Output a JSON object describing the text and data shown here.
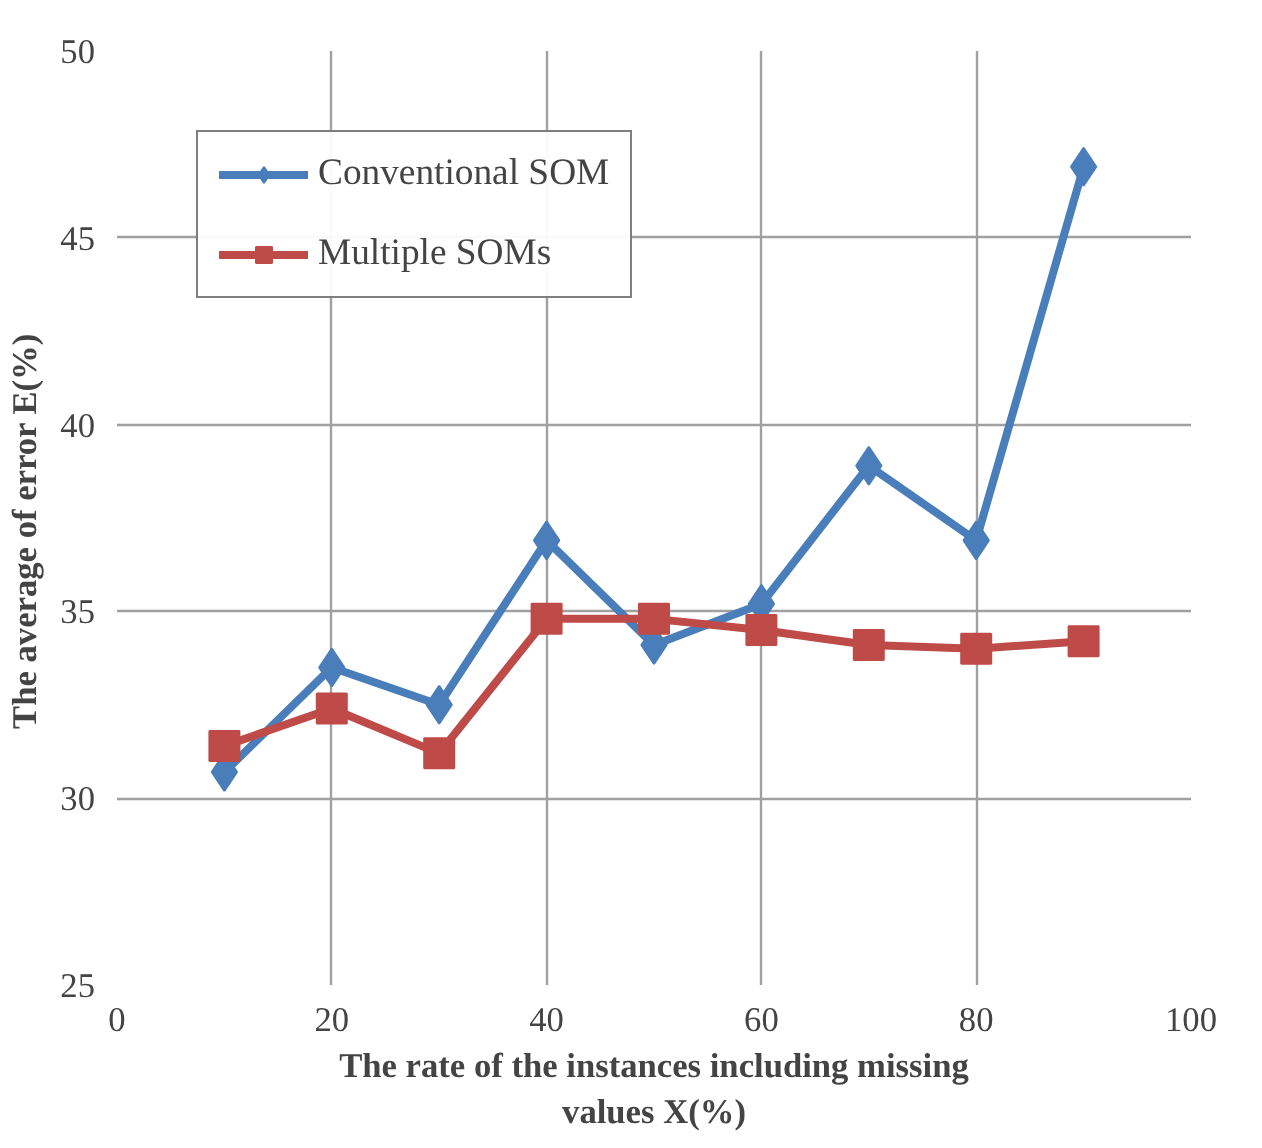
{
  "chart_data": {
    "type": "line",
    "xlabel": "The rate of the instances including missing values X(%)",
    "ylabel": "The average of error    E(%)",
    "x": [
      10,
      20,
      30,
      40,
      50,
      60,
      70,
      80,
      90
    ],
    "series": [
      {
        "name": "Conventional SOM",
        "color": "#4a7ebb",
        "marker": "diamond",
        "values": [
          30.7,
          33.5,
          32.5,
          36.9,
          34.1,
          35.2,
          38.9,
          36.9,
          46.9
        ]
      },
      {
        "name": "Multiple SOMs",
        "color": "#be4b48",
        "marker": "square",
        "values": [
          31.4,
          32.4,
          31.2,
          34.8,
          34.8,
          34.5,
          34.1,
          34.0,
          34.2
        ]
      }
    ],
    "xlim": [
      0,
      100
    ],
    "xticks": [
      0,
      20,
      40,
      60,
      80,
      100
    ],
    "ylim": [
      25,
      50
    ],
    "yticks": [
      25,
      30,
      35,
      40,
      45,
      50
    ],
    "grid": true,
    "legend": "top left",
    "line_style": "solid"
  }
}
